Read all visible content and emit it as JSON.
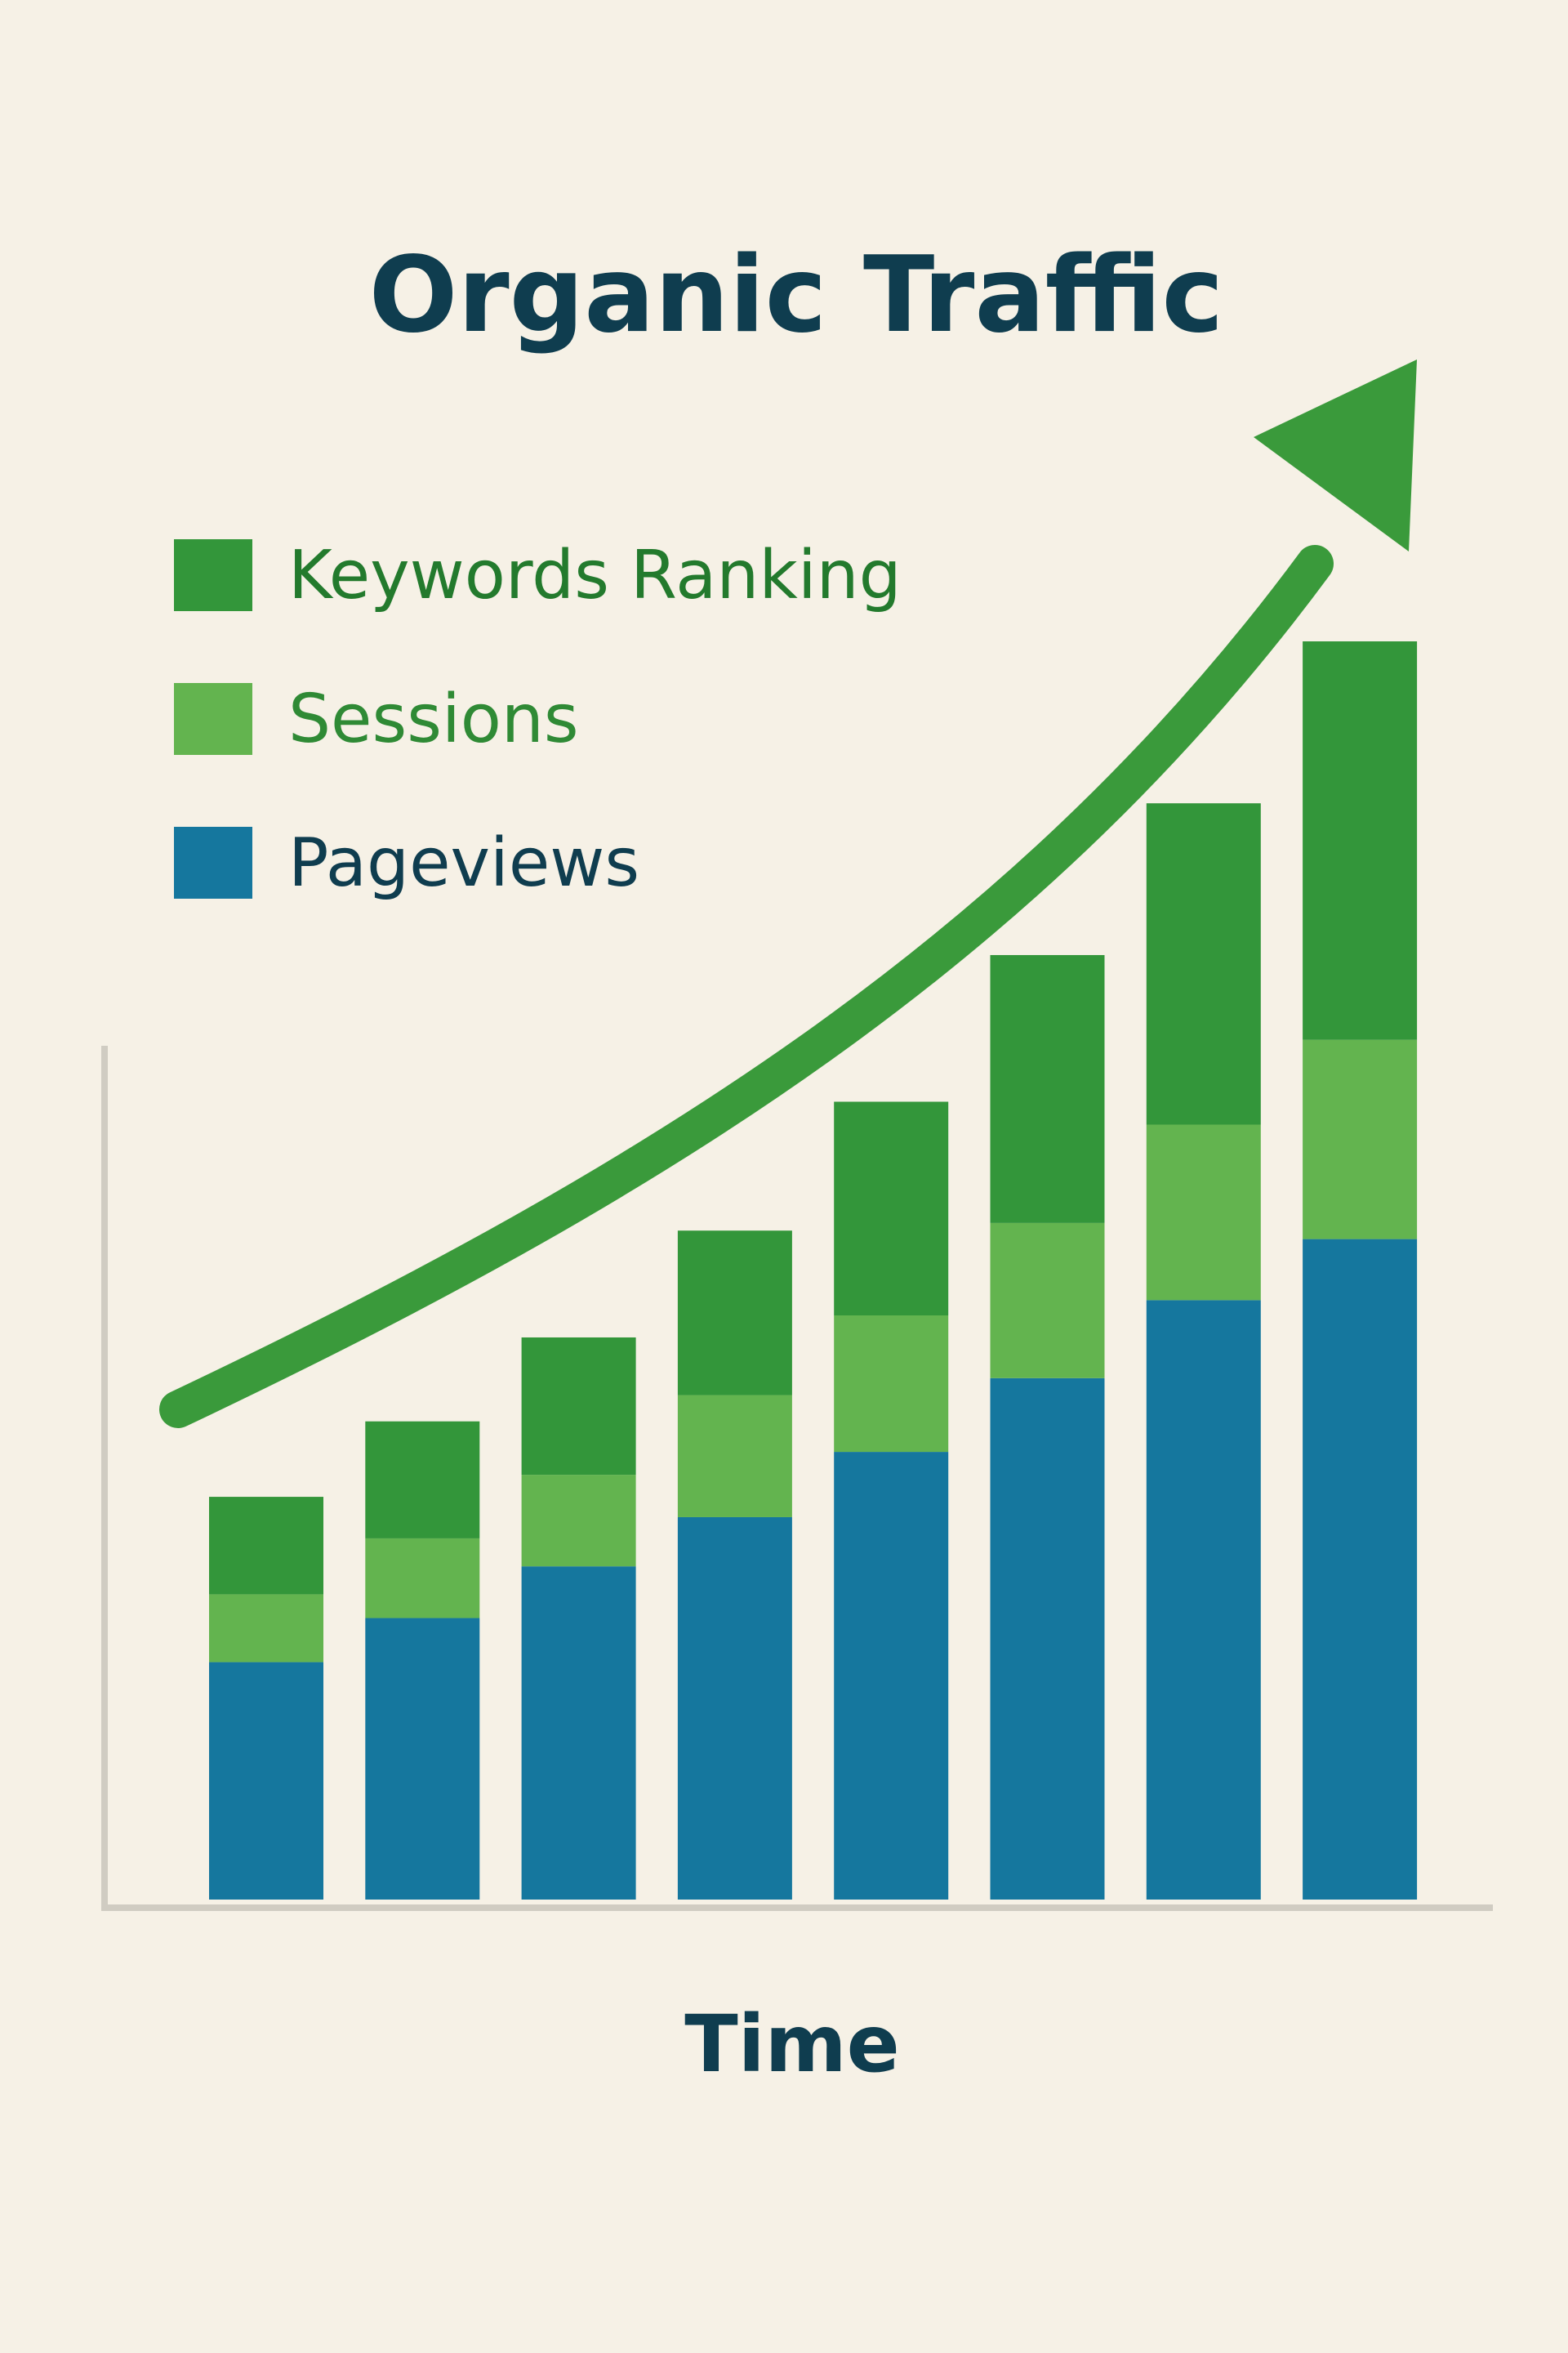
{
  "chart_data": {
    "type": "bar",
    "stacked": true,
    "title": "Organic Traffic",
    "xlabel": "Time",
    "ylabel": "",
    "categories": [
      "",
      "",
      "",
      "",
      "",
      "",
      "",
      ""
    ],
    "series": [
      {
        "name": "Pageviews",
        "color": "#15779e",
        "values": [
          280,
          332,
          393,
          451,
          528,
          615,
          707,
          779
        ]
      },
      {
        "name": "Sessions",
        "color": "#63b44f",
        "values": [
          80,
          94,
          108,
          144,
          161,
          183,
          207,
          235
        ]
      },
      {
        "name": "Keywords Ranking",
        "color": "#33963a",
        "values": [
          115,
          138,
          162,
          194,
          252,
          316,
          379,
          470
        ]
      }
    ],
    "legend": {
      "placement": "top-left",
      "order": [
        "Keywords Ranking",
        "Sessions",
        "Pageviews"
      ]
    },
    "trend_arrow": {
      "color": "#3a9a3b",
      "direction": "up-right"
    },
    "axis_color": "#d0ccc2",
    "title_color": "#0f3d4f",
    "ylim": [
      0,
      1484
    ],
    "grid": false
  }
}
